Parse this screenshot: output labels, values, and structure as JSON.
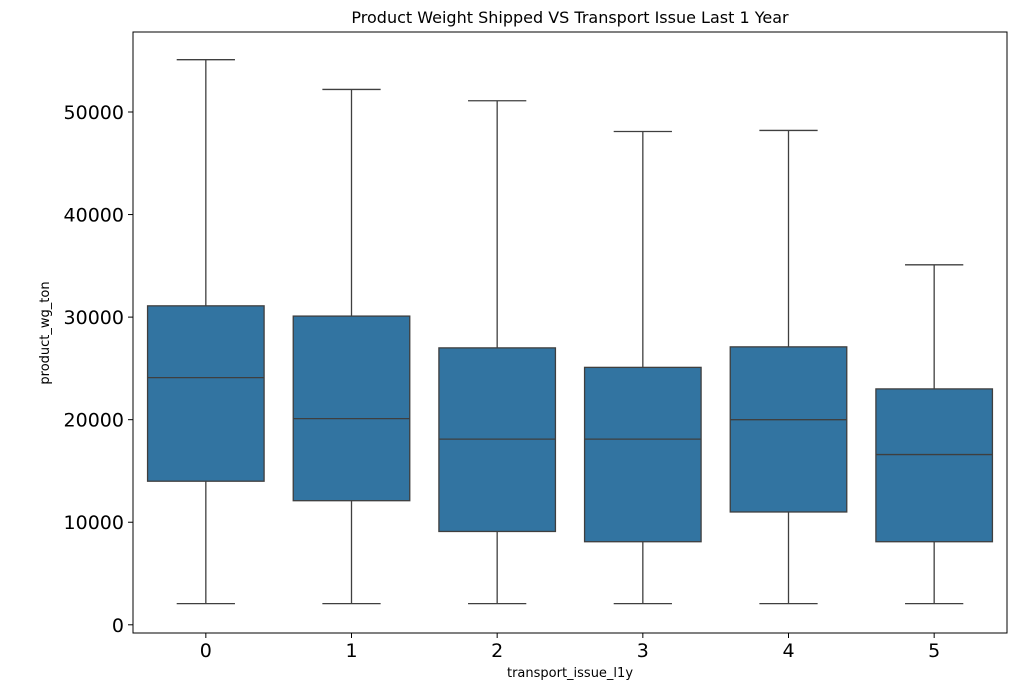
{
  "chart_data": {
    "type": "box",
    "title": "Product Weight Shipped VS Transport Issue Last 1 Year",
    "xlabel": "transport_issue_l1y",
    "ylabel": "product_wg_ton",
    "categories": [
      "0",
      "1",
      "2",
      "3",
      "4",
      "5"
    ],
    "yticks": [
      0,
      10000,
      20000,
      30000,
      40000,
      50000
    ],
    "ytick_labels": [
      "0",
      "10000",
      "20000",
      "30000",
      "40000",
      "50000"
    ],
    "ylim": [
      -800,
      57800
    ],
    "grid": false,
    "box_color": "#3274a1",
    "line_color": "#3f3f3f",
    "series": [
      {
        "category": "0",
        "min": 2065,
        "q1": 14000,
        "median": 24100,
        "q3": 31100,
        "max": 55100
      },
      {
        "category": "1",
        "min": 2065,
        "q1": 12100,
        "median": 20100,
        "q3": 30100,
        "max": 52200
      },
      {
        "category": "2",
        "min": 2065,
        "q1": 9100,
        "median": 18100,
        "q3": 27000,
        "max": 51100
      },
      {
        "category": "3",
        "min": 2065,
        "q1": 8100,
        "median": 18100,
        "q3": 25100,
        "max": 48100
      },
      {
        "category": "4",
        "min": 2065,
        "q1": 11000,
        "median": 20000,
        "q3": 27100,
        "max": 48200
      },
      {
        "category": "5",
        "min": 2065,
        "q1": 8100,
        "median": 16600,
        "q3": 23000,
        "max": 35100
      }
    ]
  }
}
